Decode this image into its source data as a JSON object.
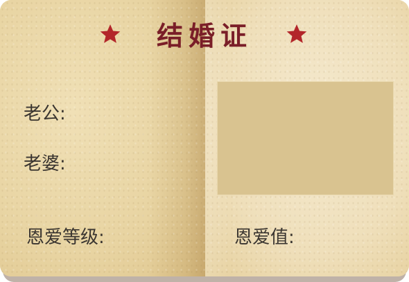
{
  "certificate": {
    "title": "结婚证",
    "husband_label": "老公:",
    "wife_label": "老婆:",
    "love_level_label": "恩爱等级:",
    "love_value_label": "恩爱值:"
  },
  "icons": {
    "left_star": "star-icon",
    "right_star": "star-icon"
  },
  "colors": {
    "title": "#7a1e28",
    "star": "#b3262a",
    "photo_placeholder": "#d9c390",
    "label_text": "#3a3530"
  }
}
